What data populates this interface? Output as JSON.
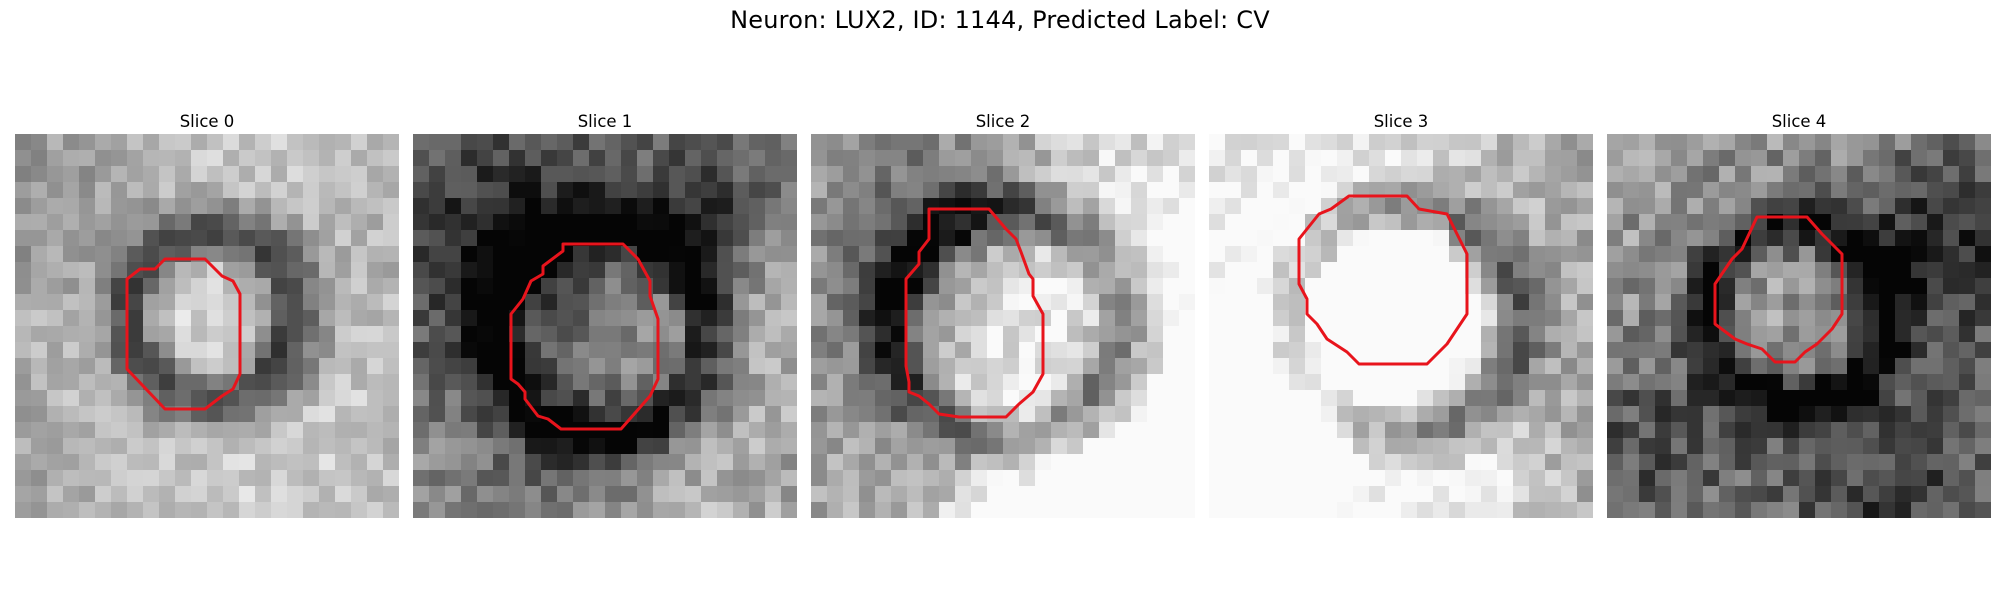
{
  "figure": {
    "title": "Neuron: LUX2, ID: 1144, Predicted Label: CV"
  },
  "panels": [
    {
      "title": "Slice 0"
    },
    {
      "title": "Slice 1"
    },
    {
      "title": "Slice 2"
    },
    {
      "title": "Slice 3"
    },
    {
      "title": "Slice 4"
    }
  ],
  "colors": {
    "contour": "#e8141c",
    "image_colormap": "grayscale"
  }
}
